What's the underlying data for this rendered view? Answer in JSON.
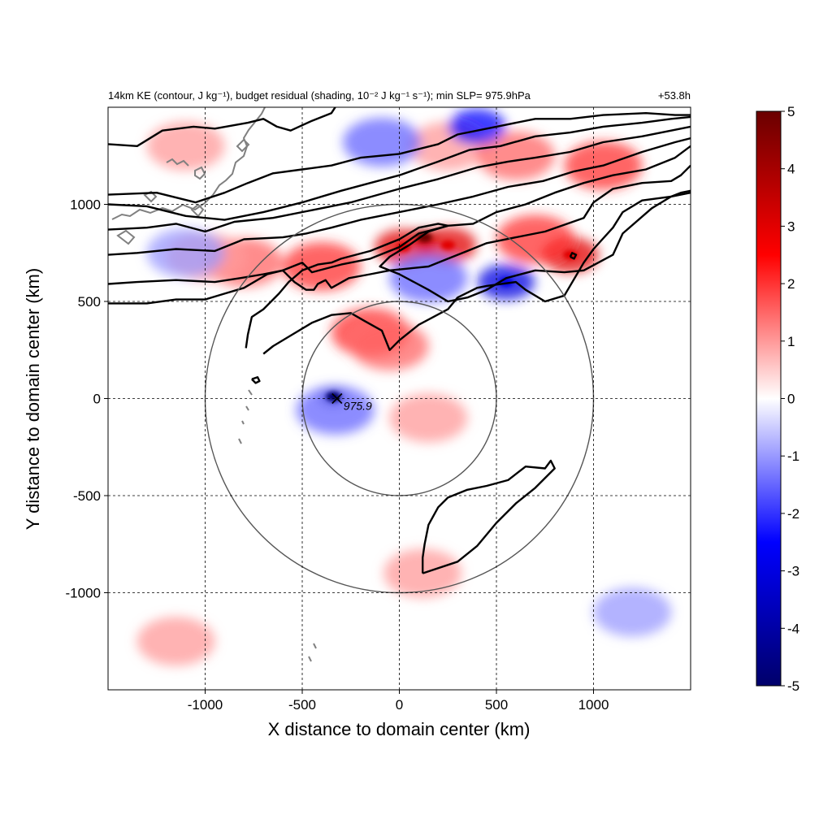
{
  "chart_data": {
    "type": "heatmap",
    "title": {
      "left": "14km KE (contour, J kg⁻¹), budget residual (shading, 10⁻² J kg⁻¹ s⁻¹); min SLP= 975.9hPa",
      "right": "+53.8h"
    },
    "xlabel": "X distance to domain center (km)",
    "ylabel": "Y distance to domain center (km)",
    "xlim": [
      -1500,
      1500
    ],
    "ylim": [
      -1500,
      1500
    ],
    "xticks": [
      -1000,
      -500,
      0,
      500,
      1000
    ],
    "yticks": [
      -1000,
      -500,
      0,
      500,
      1000
    ],
    "xtick_labels": [
      "-1000",
      "-500",
      "0",
      "500",
      "1000"
    ],
    "ytick_labels": [
      "-1000",
      "-500",
      "0",
      "500",
      "1000"
    ],
    "grid": true,
    "colorbar": {
      "min": -5,
      "max": 5,
      "ticks": [
        5,
        4,
        3,
        2,
        1,
        0,
        -1,
        -2,
        -3,
        -4,
        -5
      ],
      "tick_labels": [
        "5",
        "4",
        "3",
        "2",
        "1",
        "0",
        "-1",
        "-2",
        "-3",
        "-4",
        "-5"
      ],
      "colors": [
        "#00006a",
        "#0000ff",
        "#ffffff",
        "#ff0000",
        "#6a0000"
      ]
    },
    "range_circles_km": [
      500,
      1000
    ],
    "storm_center": {
      "x": -300,
      "y": 0,
      "label": "975.9"
    },
    "shading_blobs": [
      {
        "x": 130,
        "y": 830,
        "value": 5.0
      },
      {
        "x": 20,
        "y": 780,
        "value": 3.0
      },
      {
        "x": 250,
        "y": 790,
        "value": 3.0
      },
      {
        "x": 880,
        "y": 740,
        "value": 3.0
      },
      {
        "x": 700,
        "y": 820,
        "value": 2.0
      },
      {
        "x": -150,
        "y": 340,
        "value": 2.0
      },
      {
        "x": -50,
        "y": 270,
        "value": 1.5
      },
      {
        "x": -400,
        "y": 680,
        "value": 2.0
      },
      {
        "x": -800,
        "y": 700,
        "value": 1.5
      },
      {
        "x": 250,
        "y": 1300,
        "value": 1.0
      },
      {
        "x": 600,
        "y": 1250,
        "value": 1.5
      },
      {
        "x": 1050,
        "y": 1200,
        "value": 2.0
      },
      {
        "x": -1100,
        "y": 1300,
        "value": 1.0
      },
      {
        "x": -1000,
        "y": 730,
        "value": 1.0
      },
      {
        "x": 550,
        "y": 600,
        "value": -3.0
      },
      {
        "x": -340,
        "y": 10,
        "value": -5.0
      },
      {
        "x": -330,
        "y": -60,
        "value": -1.5
      },
      {
        "x": 150,
        "y": 620,
        "value": -1.5
      },
      {
        "x": 400,
        "y": 1400,
        "value": -2.5
      },
      {
        "x": -1100,
        "y": 750,
        "value": -1.0
      },
      {
        "x": 150,
        "y": -100,
        "value": 1.0
      },
      {
        "x": 120,
        "y": -900,
        "value": 1.0
      },
      {
        "x": -1150,
        "y": -1250,
        "value": 1.0
      },
      {
        "x": -90,
        "y": 1320,
        "value": -1.5
      },
      {
        "x": 1200,
        "y": -1100,
        "value": -1.0
      }
    ],
    "ke_contours": [
      {
        "name": "c1",
        "points": [
          [
            -1500,
            1310
          ],
          [
            -1350,
            1300
          ],
          [
            -1220,
            1380
          ],
          [
            -1060,
            1400
          ],
          [
            -950,
            1390
          ],
          [
            -780,
            1420
          ],
          [
            -700,
            1440
          ],
          [
            -630,
            1400
          ],
          [
            -560,
            1380
          ],
          [
            -450,
            1430
          ],
          [
            -350,
            1470
          ],
          [
            -330,
            1500
          ]
        ]
      },
      {
        "name": "c2",
        "points": [
          [
            -1500,
            1050
          ],
          [
            -1250,
            1060
          ],
          [
            -1050,
            1010
          ],
          [
            -900,
            1060
          ],
          [
            -780,
            1110
          ],
          [
            -650,
            1160
          ],
          [
            -500,
            1180
          ],
          [
            -350,
            1200
          ],
          [
            -200,
            1240
          ],
          [
            0,
            1260
          ],
          [
            200,
            1310
          ],
          [
            300,
            1360
          ],
          [
            500,
            1400
          ],
          [
            700,
            1440
          ],
          [
            880,
            1440
          ],
          [
            1050,
            1460
          ],
          [
            1270,
            1470
          ],
          [
            1420,
            1460
          ],
          [
            1500,
            1460
          ]
        ]
      },
      {
        "name": "c3",
        "points": [
          [
            -1500,
            1000
          ],
          [
            -1300,
            990
          ],
          [
            -1100,
            940
          ],
          [
            -900,
            920
          ],
          [
            -700,
            960
          ],
          [
            -500,
            1010
          ],
          [
            -300,
            1070
          ],
          [
            -150,
            1110
          ],
          [
            0,
            1150
          ],
          [
            200,
            1220
          ],
          [
            360,
            1280
          ],
          [
            520,
            1300
          ],
          [
            700,
            1350
          ],
          [
            880,
            1370
          ],
          [
            1050,
            1400
          ],
          [
            1250,
            1420
          ],
          [
            1400,
            1440
          ],
          [
            1500,
            1450
          ]
        ]
      },
      {
        "name": "c4",
        "points": [
          [
            -1500,
            870
          ],
          [
            -1300,
            880
          ],
          [
            -1150,
            900
          ],
          [
            -1000,
            860
          ],
          [
            -850,
            910
          ],
          [
            -650,
            930
          ],
          [
            -450,
            970
          ],
          [
            -250,
            1010
          ],
          [
            0,
            1080
          ],
          [
            200,
            1130
          ],
          [
            400,
            1190
          ],
          [
            560,
            1220
          ],
          [
            700,
            1240
          ],
          [
            880,
            1270
          ],
          [
            1050,
            1320
          ],
          [
            1250,
            1350
          ],
          [
            1400,
            1380
          ],
          [
            1500,
            1400
          ]
        ]
      },
      {
        "name": "c5",
        "points": [
          [
            -1500,
            740
          ],
          [
            -1350,
            750
          ],
          [
            -1150,
            770
          ],
          [
            -950,
            760
          ],
          [
            -800,
            820
          ],
          [
            -600,
            830
          ],
          [
            -480,
            850
          ],
          [
            -350,
            880
          ],
          [
            -200,
            920
          ],
          [
            0,
            960
          ],
          [
            200,
            1000
          ],
          [
            380,
            1040
          ],
          [
            560,
            1090
          ],
          [
            740,
            1120
          ],
          [
            900,
            1170
          ],
          [
            1050,
            1200
          ],
          [
            1250,
            1270
          ],
          [
            1420,
            1320
          ],
          [
            1500,
            1340
          ]
        ]
      },
      {
        "name": "c6",
        "points": [
          [
            -1500,
            590
          ],
          [
            -1350,
            600
          ],
          [
            -1150,
            610
          ],
          [
            -950,
            600
          ],
          [
            -820,
            620
          ],
          [
            -700,
            640
          ],
          [
            -600,
            660
          ],
          [
            -500,
            700
          ],
          [
            -450,
            650
          ],
          [
            -300,
            690
          ],
          [
            -150,
            720
          ],
          [
            0,
            780
          ],
          [
            100,
            850
          ],
          [
            250,
            890
          ],
          [
            380,
            900
          ],
          [
            500,
            960
          ],
          [
            650,
            1000
          ],
          [
            800,
            1060
          ],
          [
            950,
            1110
          ],
          [
            1100,
            1150
          ],
          [
            1270,
            1180
          ],
          [
            1420,
            1240
          ],
          [
            1500,
            1300
          ]
        ]
      },
      {
        "name": "c7",
        "points": [
          [
            -1500,
            490
          ],
          [
            -1300,
            490
          ],
          [
            -1150,
            510
          ],
          [
            -1000,
            510
          ],
          [
            -900,
            540
          ],
          [
            -800,
            570
          ],
          [
            -680,
            640
          ],
          [
            -600,
            660
          ],
          [
            -540,
            600
          ],
          [
            -480,
            560
          ],
          [
            -440,
            560
          ],
          [
            -420,
            590
          ],
          [
            -380,
            610
          ],
          [
            -350,
            570
          ],
          [
            -260,
            620
          ],
          [
            -150,
            640
          ],
          [
            -50,
            660
          ],
          [
            50,
            670
          ],
          [
            150,
            680
          ],
          [
            250,
            720
          ],
          [
            350,
            760
          ],
          [
            450,
            800
          ],
          [
            600,
            830
          ],
          [
            750,
            860
          ],
          [
            950,
            930
          ],
          [
            1000,
            1010
          ],
          [
            1100,
            1080
          ],
          [
            1250,
            1110
          ],
          [
            1400,
            1120
          ],
          [
            1450,
            1150
          ],
          [
            1500,
            1200
          ]
        ]
      },
      {
        "name": "c8",
        "points": [
          [
            -790,
            260
          ],
          [
            -780,
            330
          ],
          [
            -760,
            420
          ],
          [
            -700,
            460
          ],
          [
            -620,
            540
          ],
          [
            -570,
            600
          ],
          [
            -500,
            660
          ],
          [
            -420,
            690
          ],
          [
            -350,
            700
          ],
          [
            -300,
            720
          ],
          [
            -150,
            760
          ],
          [
            0,
            820
          ],
          [
            100,
            880
          ],
          [
            200,
            900
          ],
          [
            250,
            890
          ],
          [
            150,
            860
          ],
          [
            50,
            790
          ],
          [
            -50,
            730
          ],
          [
            -100,
            680
          ],
          [
            0,
            640
          ],
          [
            150,
            560
          ],
          [
            250,
            500
          ],
          [
            350,
            520
          ],
          [
            450,
            560
          ],
          [
            550,
            620
          ],
          [
            700,
            660
          ],
          [
            850,
            650
          ],
          [
            950,
            660
          ],
          [
            1100,
            740
          ],
          [
            1150,
            850
          ],
          [
            1300,
            980
          ],
          [
            1400,
            1040
          ],
          [
            1450,
            1060
          ],
          [
            1500,
            1070
          ]
        ]
      },
      {
        "name": "c9",
        "points": [
          [
            -700,
            230
          ],
          [
            -650,
            270
          ],
          [
            -550,
            330
          ],
          [
            -450,
            390
          ],
          [
            -350,
            430
          ],
          [
            -250,
            440
          ],
          [
            -180,
            400
          ],
          [
            -90,
            350
          ],
          [
            -50,
            250
          ],
          [
            0,
            300
          ],
          [
            100,
            380
          ],
          [
            250,
            460
          ],
          [
            300,
            520
          ],
          [
            400,
            570
          ],
          [
            450,
            580
          ],
          [
            600,
            600
          ],
          [
            650,
            560
          ],
          [
            750,
            500
          ],
          [
            850,
            530
          ],
          [
            950,
            700
          ],
          [
            1000,
            770
          ],
          [
            1100,
            880
          ],
          [
            1150,
            960
          ],
          [
            1250,
            1020
          ],
          [
            1400,
            1040
          ],
          [
            1500,
            1060
          ]
        ]
      },
      {
        "name": "c10",
        "points": [
          [
            120,
            -900
          ],
          [
            300,
            -840
          ],
          [
            400,
            -760
          ],
          [
            500,
            -640
          ],
          [
            600,
            -540
          ],
          [
            700,
            -460
          ],
          [
            800,
            -360
          ],
          [
            780,
            -320
          ],
          [
            750,
            -360
          ],
          [
            650,
            -350
          ],
          [
            560,
            -420
          ],
          [
            450,
            -450
          ],
          [
            350,
            -470
          ],
          [
            250,
            -510
          ],
          [
            200,
            -560
          ],
          [
            150,
            -650
          ],
          [
            130,
            -750
          ],
          [
            120,
            -820
          ],
          [
            120,
            -900
          ]
        ]
      },
      {
        "name": "c11",
        "points": [
          [
            -760,
            100
          ],
          [
            -730,
            110
          ],
          [
            -720,
            90
          ],
          [
            -740,
            80
          ],
          [
            -760,
            100
          ]
        ]
      },
      {
        "name": "c12",
        "points": [
          [
            880,
            730
          ],
          [
            900,
            720
          ],
          [
            910,
            740
          ],
          [
            890,
            750
          ],
          [
            880,
            730
          ]
        ]
      }
    ]
  }
}
